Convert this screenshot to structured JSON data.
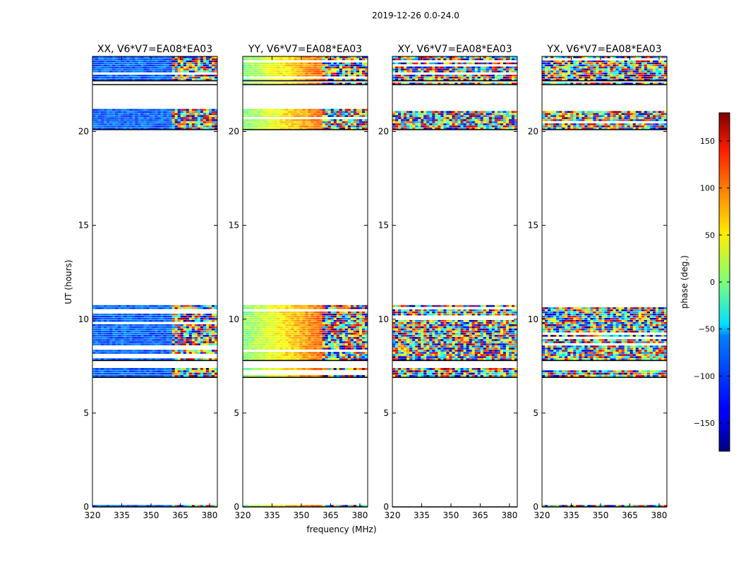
{
  "figure": {
    "suptitle": "2019-12-26 0.0-24.0",
    "xlabel": "frequency (MHz)",
    "ylabel": "UT (hours)",
    "colorbar_label": "phase (deg.)"
  },
  "chart_data": {
    "type": "heatmap",
    "panels": [
      {
        "title": "XX, V6*V7=EA08*EA03",
        "pol": "XX"
      },
      {
        "title": "YY, V6*V7=EA08*EA03",
        "pol": "YY"
      },
      {
        "title": "XY, V6*V7=EA08*EA03",
        "pol": "XY"
      },
      {
        "title": "YX, V6*V7=EA08*EA03",
        "pol": "YX"
      }
    ],
    "xlim": [
      320,
      384
    ],
    "ylim": [
      0,
      24
    ],
    "xticks": [
      320,
      335,
      350,
      365,
      380
    ],
    "yticks": [
      0,
      5,
      10,
      15,
      20
    ],
    "colorbar": {
      "colormap": "jet",
      "range": [
        -180,
        180
      ],
      "ticks": [
        150,
        100,
        50,
        0,
        -50,
        -100,
        -150
      ],
      "tick_labels": [
        "150",
        "100",
        "50",
        "0",
        "−50",
        "−100",
        "−150"
      ]
    },
    "data_time_bands_hours": [
      [
        0.0,
        0.1
      ],
      [
        6.9,
        7.4
      ],
      [
        7.8,
        10.75
      ],
      [
        20.1,
        21.2
      ],
      [
        22.5,
        22.6
      ],
      [
        22.7,
        24.0
      ]
    ],
    "grid": false
  }
}
